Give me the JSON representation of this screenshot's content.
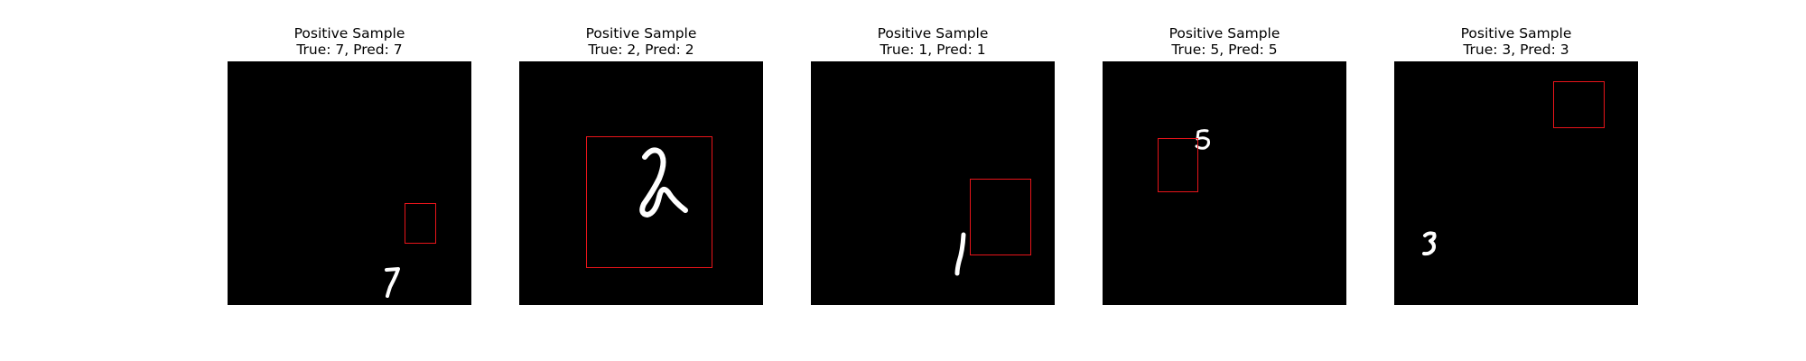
{
  "figure": {
    "panels": [
      {
        "title": "Positive Sample",
        "caption": "True: 7, Pred: 7",
        "digit": "7",
        "box_color": "#e8141a"
      },
      {
        "title": "Positive Sample",
        "caption": "True: 2, Pred: 2",
        "digit": "2",
        "box_color": "#e8141a"
      },
      {
        "title": "Positive Sample",
        "caption": "True: 1, Pred: 1",
        "digit": "1",
        "box_color": "#e8141a"
      },
      {
        "title": "Positive Sample",
        "caption": "True: 5, Pred: 5",
        "digit": "5",
        "box_color": "#e8141a"
      },
      {
        "title": "Positive Sample",
        "caption": "True: 3, Pred: 3",
        "digit": "3",
        "box_color": "#e8141a"
      }
    ]
  },
  "colors": {
    "background": "#000000",
    "stroke": "#ffffff",
    "box": "#e8141a"
  }
}
